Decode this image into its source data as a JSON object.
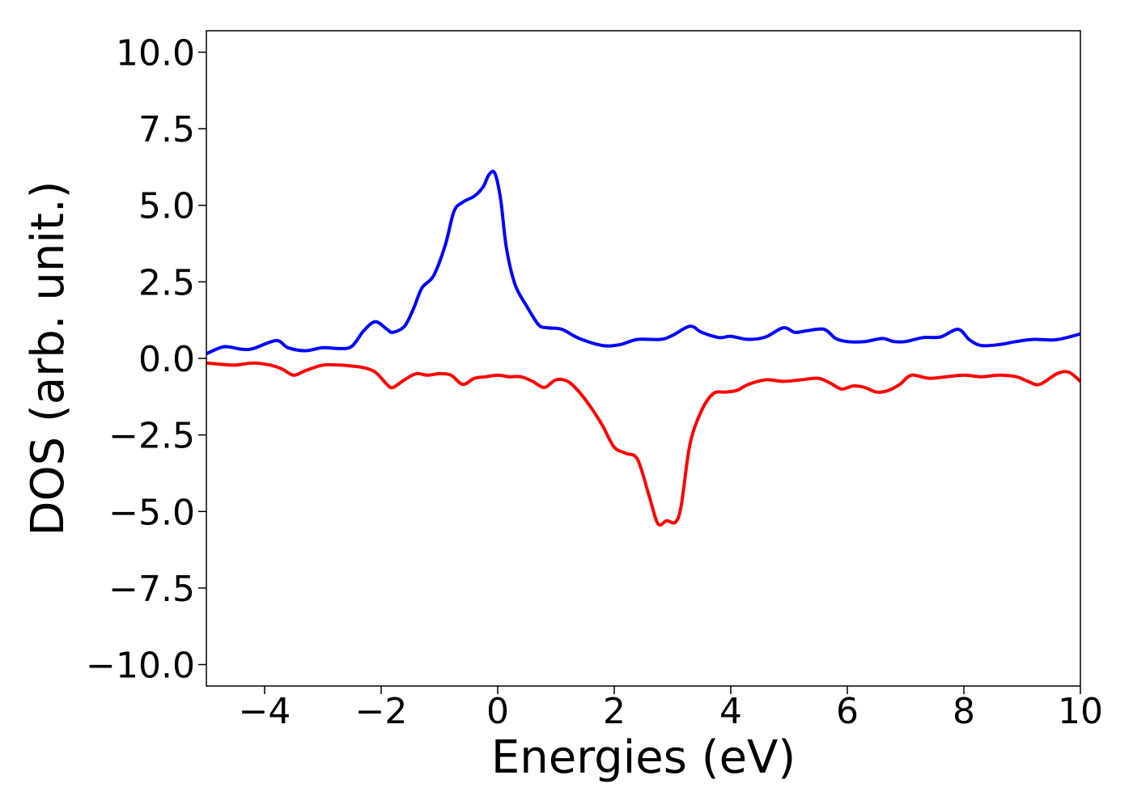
{
  "chart_data": {
    "type": "line",
    "title": "",
    "xlabel": "Energies (eV)",
    "ylabel": "DOS (arb. unit.)",
    "xlim": [
      -5,
      10
    ],
    "ylim": [
      -10.7,
      10.7
    ],
    "grid": false,
    "legend": "none",
    "x_ticks": [
      -4,
      -2,
      0,
      2,
      4,
      6,
      8,
      10
    ],
    "x_tick_labels": [
      "−4",
      "−2",
      "0",
      "2",
      "4",
      "6",
      "8",
      "10"
    ],
    "y_ticks": [
      10,
      7.5,
      5,
      2.5,
      0,
      -2.5,
      -5,
      -7.5,
      -10
    ],
    "y_tick_labels": [
      "10.0",
      "7.5",
      "5.0",
      "2.5",
      "0.0",
      "−2.5",
      "−5.0",
      "−7.5",
      "−10.0"
    ],
    "series": [
      {
        "color": "#0000ff",
        "x": [
          -5.0,
          -4.7,
          -4.4,
          -4.2,
          -3.8,
          -3.6,
          -3.3,
          -3.0,
          -2.7,
          -2.5,
          -2.3,
          -2.1,
          -1.9,
          -1.8,
          -1.6,
          -1.45,
          -1.3,
          -1.1,
          -0.9,
          -0.75,
          -0.6,
          -0.4,
          -0.25,
          -0.15,
          -0.05,
          0.05,
          0.15,
          0.3,
          0.5,
          0.7,
          0.85,
          1.1,
          1.4,
          1.8,
          2.1,
          2.4,
          2.8,
          3.0,
          3.3,
          3.5,
          3.8,
          4.0,
          4.3,
          4.6,
          4.9,
          5.1,
          5.3,
          5.6,
          5.8,
          6.0,
          6.3,
          6.6,
          6.8,
          7.0,
          7.3,
          7.6,
          7.9,
          8.1,
          8.3,
          8.6,
          8.9,
          9.2,
          9.5,
          9.7,
          10.0
        ],
        "y": [
          0.15,
          0.38,
          0.3,
          0.32,
          0.58,
          0.35,
          0.25,
          0.35,
          0.32,
          0.4,
          0.9,
          1.2,
          0.95,
          0.85,
          1.05,
          1.6,
          2.3,
          2.7,
          3.7,
          4.8,
          5.1,
          5.3,
          5.6,
          6.0,
          6.05,
          5.2,
          3.6,
          2.4,
          1.7,
          1.1,
          1.0,
          0.95,
          0.65,
          0.42,
          0.45,
          0.62,
          0.62,
          0.75,
          1.05,
          0.85,
          0.68,
          0.72,
          0.62,
          0.7,
          1.0,
          0.85,
          0.9,
          0.95,
          0.65,
          0.55,
          0.55,
          0.65,
          0.55,
          0.55,
          0.68,
          0.7,
          0.95,
          0.6,
          0.42,
          0.45,
          0.55,
          0.62,
          0.6,
          0.65,
          0.8
        ]
      },
      {
        "color": "#ff0000",
        "x": [
          -5.0,
          -4.7,
          -4.5,
          -4.2,
          -3.9,
          -3.7,
          -3.5,
          -3.3,
          -3.0,
          -2.7,
          -2.5,
          -2.3,
          -2.1,
          -1.9,
          -1.8,
          -1.6,
          -1.4,
          -1.2,
          -1.0,
          -0.8,
          -0.6,
          -0.4,
          -0.2,
          0.0,
          0.2,
          0.4,
          0.6,
          0.8,
          1.0,
          1.2,
          1.4,
          1.6,
          1.8,
          2.0,
          2.2,
          2.4,
          2.6,
          2.75,
          2.9,
          3.05,
          3.15,
          3.3,
          3.5,
          3.7,
          3.9,
          4.1,
          4.3,
          4.6,
          4.9,
          5.2,
          5.5,
          5.7,
          5.9,
          6.1,
          6.3,
          6.5,
          6.7,
          6.9,
          7.1,
          7.4,
          7.7,
          8.0,
          8.3,
          8.6,
          8.9,
          9.1,
          9.3,
          9.6,
          9.8,
          10.0
        ],
        "y": [
          -0.15,
          -0.2,
          -0.22,
          -0.15,
          -0.22,
          -0.35,
          -0.55,
          -0.4,
          -0.22,
          -0.22,
          -0.25,
          -0.3,
          -0.45,
          -0.85,
          -0.95,
          -0.7,
          -0.5,
          -0.55,
          -0.5,
          -0.55,
          -0.85,
          -0.65,
          -0.6,
          -0.55,
          -0.6,
          -0.6,
          -0.75,
          -0.95,
          -0.7,
          -0.75,
          -1.1,
          -1.6,
          -2.2,
          -2.9,
          -3.1,
          -3.3,
          -4.5,
          -5.4,
          -5.3,
          -5.35,
          -4.8,
          -2.8,
          -1.7,
          -1.15,
          -1.1,
          -1.05,
          -0.85,
          -0.7,
          -0.75,
          -0.7,
          -0.65,
          -0.8,
          -1.0,
          -0.9,
          -0.95,
          -1.1,
          -1.05,
          -0.85,
          -0.55,
          -0.65,
          -0.6,
          -0.55,
          -0.6,
          -0.55,
          -0.6,
          -0.75,
          -0.85,
          -0.5,
          -0.45,
          -0.75
        ]
      }
    ]
  }
}
